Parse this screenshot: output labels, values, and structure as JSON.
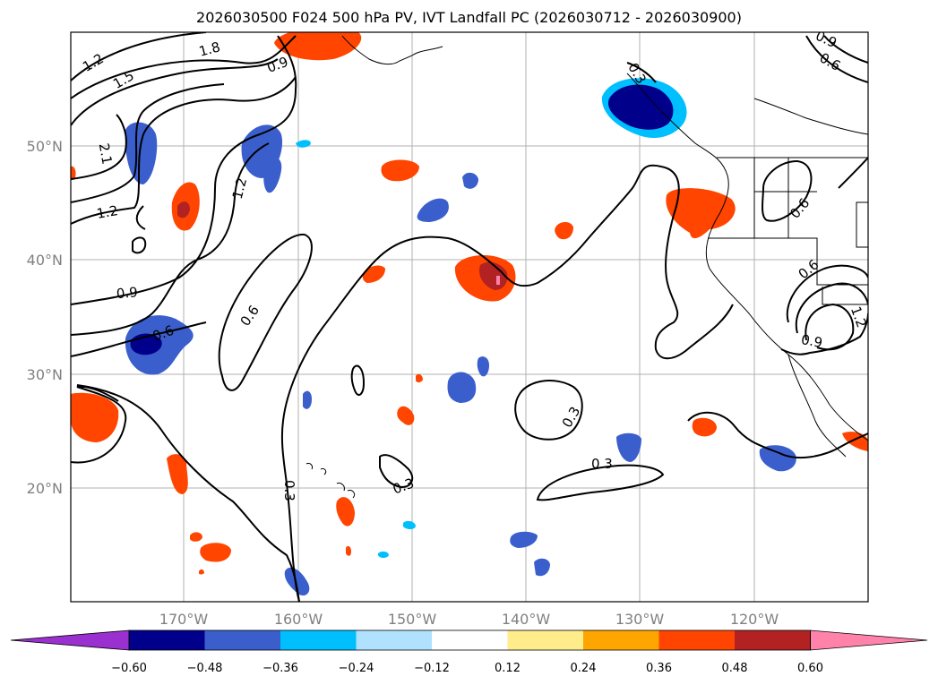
{
  "title": "2026030500 F024 500 hPa PV, IVT Landfall PC (2026030712 - 2026030900)",
  "lat_labels": [
    "50°N",
    "40°N",
    "30°N",
    "20°N"
  ],
  "lon_labels": [
    "170°W",
    "160°W",
    "150°W",
    "140°W",
    "130°W",
    "120°W"
  ],
  "contour_labels": [
    "1.2",
    "1.5",
    "1.8",
    "0.9",
    "2.1",
    "1.2",
    "1.2",
    "0.9",
    "0.6",
    "0.6",
    "0.3",
    "0.3",
    "0.3",
    "0.3",
    "0.9",
    "0.6",
    "0.6",
    "0.6",
    "0.9",
    "1.2",
    "0.3"
  ],
  "colorbar": {
    "ticks": [
      "−0.60",
      "−0.48",
      "−0.36",
      "−0.24",
      "−0.12",
      "0.12",
      "0.24",
      "0.36",
      "0.48",
      "0.60"
    ],
    "colors": [
      "#9b30d0",
      "#00008b",
      "#3a5fcd",
      "#00bfff",
      "#b0e2ff",
      "#ffffff",
      "#ffec8b",
      "#ffa500",
      "#ff4500",
      "#b22222",
      "#ff82ab"
    ]
  }
}
